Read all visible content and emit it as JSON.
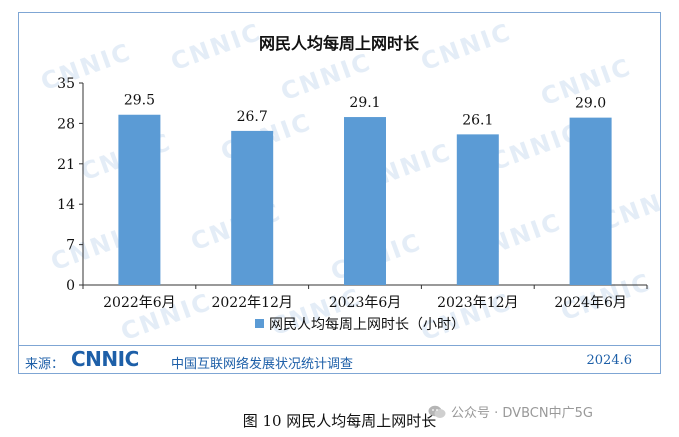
{
  "chart_data": {
    "type": "bar",
    "title": "网民人均每周上网时长",
    "categories": [
      "2022年6月",
      "2022年12月",
      "2023年6月",
      "2023年12月",
      "2024年6月"
    ],
    "series": [
      {
        "name": "网民人均每周上网时长（小时）",
        "values": [
          29.5,
          26.7,
          29.1,
          26.1,
          29.0
        ]
      }
    ],
    "data_labels": [
      "29.5",
      "26.7",
      "29.1",
      "26.1",
      "29.0"
    ],
    "yticks": [
      "0",
      "7",
      "14",
      "21",
      "28",
      "35"
    ],
    "ylim": [
      0,
      35
    ],
    "xlabel": "",
    "ylabel": "",
    "grid": false,
    "legend_position": "bottom-center",
    "bar_color": "#5b9bd5"
  },
  "watermark": "CNNIC",
  "source": {
    "label": "来源：",
    "logo": "CNNIC",
    "name": "中国互联网络发展状况统计调查",
    "date": "2024.6"
  },
  "caption": "图  10    网民人均每周上网时长",
  "overlay": {
    "icon": "wechat-icon",
    "text": "公众号 · DVBCN中广5G"
  }
}
